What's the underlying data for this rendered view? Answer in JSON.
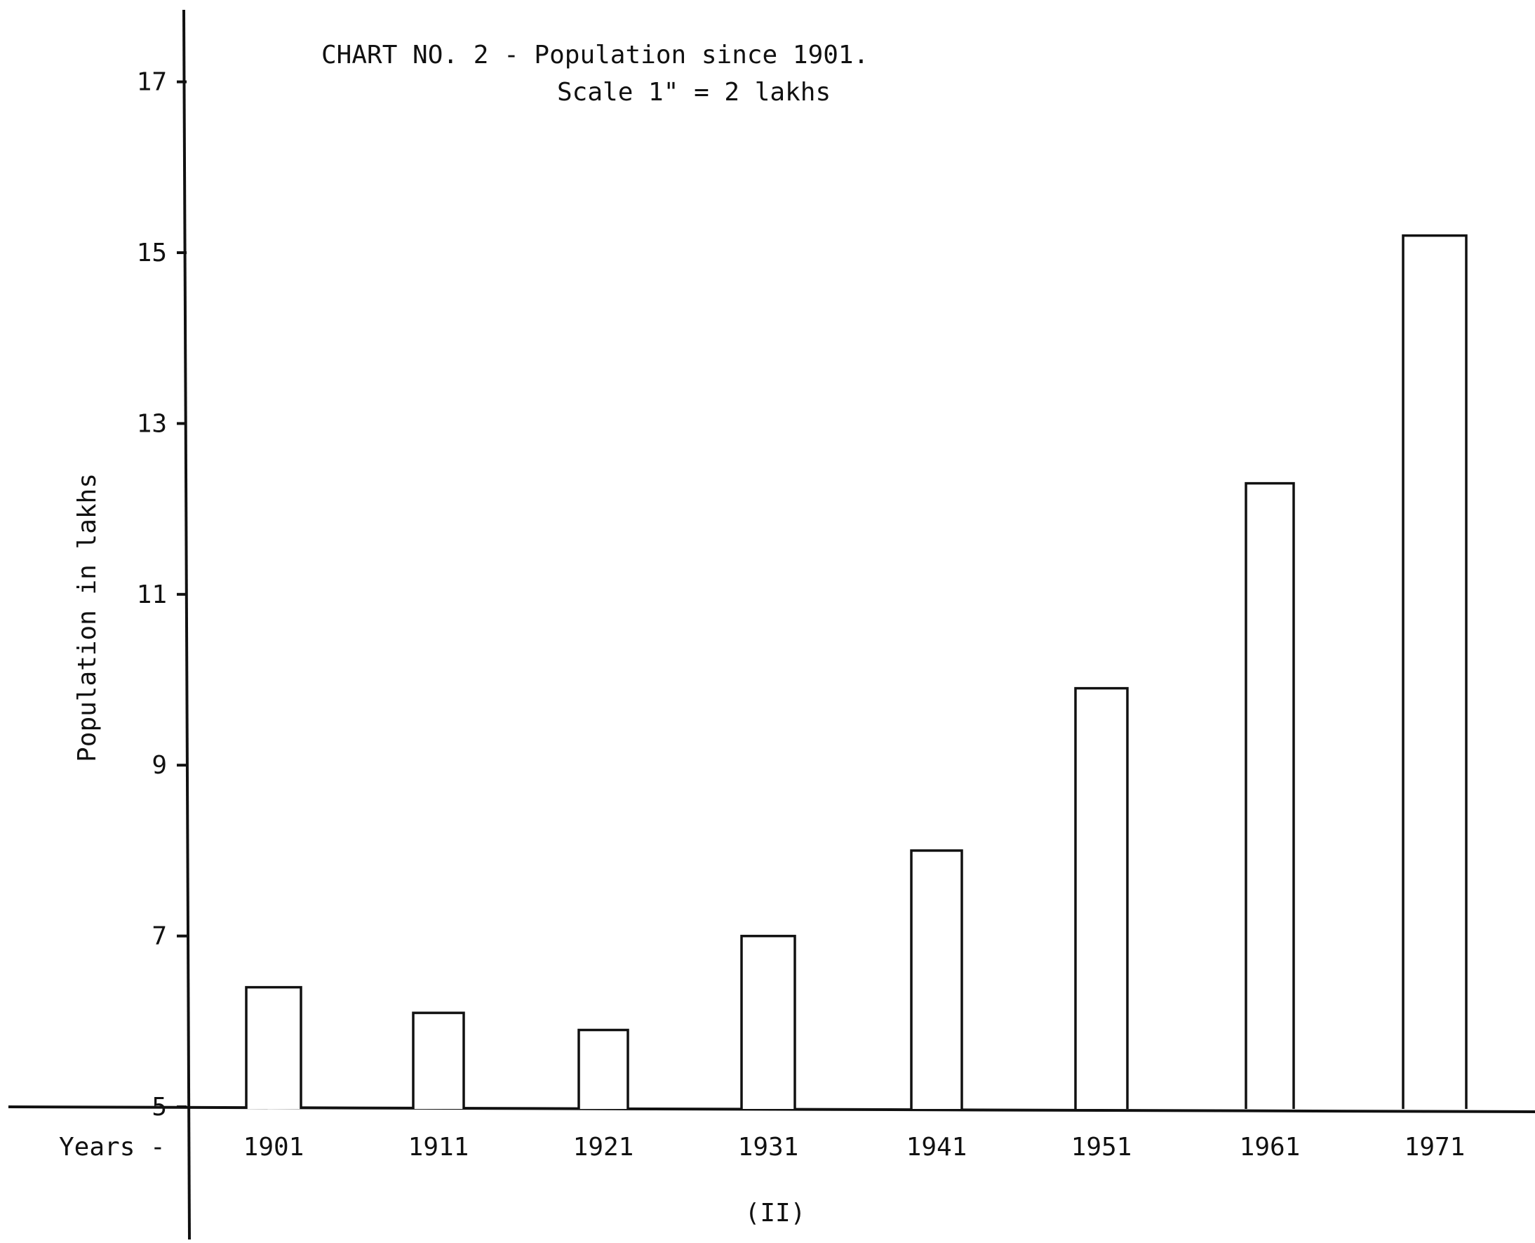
{
  "chart_data": {
    "type": "bar",
    "title": "CHART NO. 2 - Population since 1901.",
    "subtitle": "Scale 1\" = 2 lakhs",
    "ylabel": "Population in lakhs",
    "xlabel": "Years -",
    "caption": "(II)",
    "categories": [
      "1901",
      "1911",
      "1921",
      "1931",
      "1941",
      "1951",
      "1961",
      "1971"
    ],
    "values": [
      6.4,
      6.1,
      5.9,
      7.0,
      8.0,
      9.9,
      12.3,
      15.2
    ],
    "yticks": [
      5,
      7,
      9,
      11,
      13,
      15,
      17
    ],
    "ylim": [
      5,
      17.9
    ],
    "grid": false,
    "legend": "none",
    "bar_fill": "#ffffff",
    "ink_color": "#111111"
  }
}
